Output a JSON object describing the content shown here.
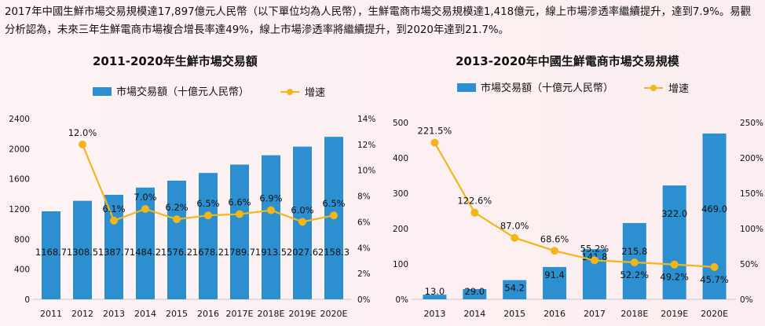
{
  "intro_text": "2017年中國生鮮市場交易規模達17,897億元人民幣（以下單位均為人民幣），生鮮電商市場交易規模達1,418億元，線上市場滲透率繼續提升，達到7.9%。易觀分析認為，未來三年生鮮電商市場複合增長率達49%，線上市場滲透率將繼續提升，到2020年達到21.7%。",
  "colors": {
    "bar": "#2b8fd0",
    "line": "#f3b51a",
    "text": "#111111"
  },
  "chart_data": [
    {
      "type": "bar+line",
      "title": "2011-2020年生鮮市場交易額",
      "legend": {
        "bar": "市場交易額（十億元人民幣）",
        "line": "增速",
        "position": "top"
      },
      "categories": [
        "2011",
        "2012",
        "2013",
        "2014",
        "2015",
        "2016",
        "2017E",
        "2018E",
        "2019E",
        "2020E"
      ],
      "bar_values": [
        1168.7,
        1308.5,
        1387.7,
        1484.2,
        1576.2,
        1678.2,
        1789.7,
        1913.5,
        2027.6,
        2158.3
      ],
      "bar_labels": [
        "1168.7",
        "1308.5",
        "1387.7",
        "1484.2",
        "1576.2",
        "1678.2",
        "1789.7",
        "1913.5",
        "2027.6",
        "2158.3"
      ],
      "line_values": [
        12.0,
        6.1,
        7.0,
        6.2,
        6.5,
        6.6,
        6.9,
        6.0,
        6.5
      ],
      "line_labels": [
        "12.0%",
        "6.1%",
        "7.0%",
        "6.2%",
        "6.5%",
        "6.6%",
        "6.9%",
        "6.0%",
        "6.5%"
      ],
      "line_start_index": 1,
      "left_axis": {
        "min": 0,
        "max": 2400,
        "ticks": [
          "0",
          "400",
          "800",
          "1200",
          "1600",
          "2000",
          "2400"
        ]
      },
      "right_axis": {
        "min": 0,
        "max": 14,
        "ticks": [
          "0%",
          "2%",
          "4%",
          "6%",
          "8%",
          "10%",
          "12%",
          "14%"
        ]
      }
    },
    {
      "type": "bar+line",
      "title": "2013-2020年中國生鮮電商市場交易規模",
      "legend": {
        "bar": "市場交易額（十億元人民幣）",
        "line": "增速",
        "position": "top"
      },
      "categories": [
        "2013",
        "2014",
        "2015",
        "2016",
        "2017",
        "2018E",
        "2019E",
        "2020E"
      ],
      "bar_values": [
        13.0,
        29.0,
        54.2,
        91.4,
        141.8,
        215.8,
        322.0,
        469.0
      ],
      "bar_labels": [
        "13.0",
        "29.0",
        "54.2",
        "91.4",
        "141.8",
        "215.8",
        "322.0",
        "469.0"
      ],
      "line_values": [
        221.5,
        122.6,
        87.0,
        68.6,
        55.2,
        52.2,
        49.2,
        45.7
      ],
      "line_labels": [
        "221.5%",
        "122.6%",
        "87.0%",
        "68.6%",
        "55.2%",
        "52.2%",
        "49.2%",
        "45.7%"
      ],
      "line_start_index": 0,
      "left_axis": {
        "min": 0,
        "max": 500,
        "ticks": [
          "0%",
          "100",
          "200",
          "300",
          "400",
          "500"
        ]
      },
      "right_axis": {
        "min": 0,
        "max": 250,
        "ticks": [
          "0%",
          "50%",
          "100%",
          "150%",
          "200%",
          "250%"
        ]
      }
    }
  ]
}
